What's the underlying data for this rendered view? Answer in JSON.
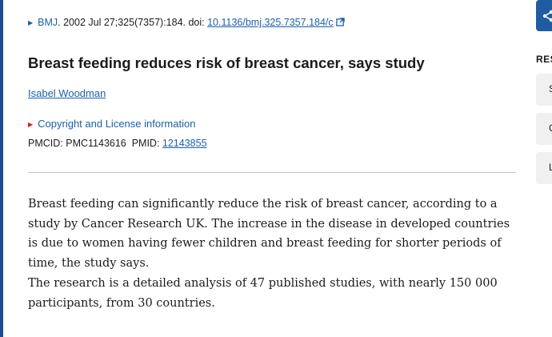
{
  "citation": {
    "journal": "BMJ",
    "details": ". 2002 Jul 27;325(7357):184. doi: ",
    "doi": "10.1136/bmj.325.7357.184/c"
  },
  "article": {
    "title": "Breast feeding reduces risk of breast cancer, says study",
    "author": "Isabel Woodman",
    "license_toggle": "Copyright and License information",
    "pmcid_label": "PMCID: ",
    "pmcid": "PMC1143616",
    "pmid_label": "PMID: ",
    "pmid": "12143855",
    "paragraphs": [
      "Breast feeding can significantly reduce the risk of breast cancer, according to a study by Cancer Research UK. The increase in the disease in developed countries is due to women having fewer children and breast feeding for shorter periods of time, the study says.",
      "The research is a detailed analysis of 47 published studies, with nearly 150 000 participants, from 30 countries."
    ]
  },
  "sidebar": {
    "heading": "RES",
    "buttons": [
      "S",
      "C",
      "L"
    ]
  },
  "icons": {
    "share": "share-icon",
    "external": "external-link-icon",
    "expand": "triangle-right-icon"
  },
  "colors": {
    "link": "#1c5fa8",
    "accent": "#1f5ca3",
    "expand_marker": "#d11e1e"
  }
}
